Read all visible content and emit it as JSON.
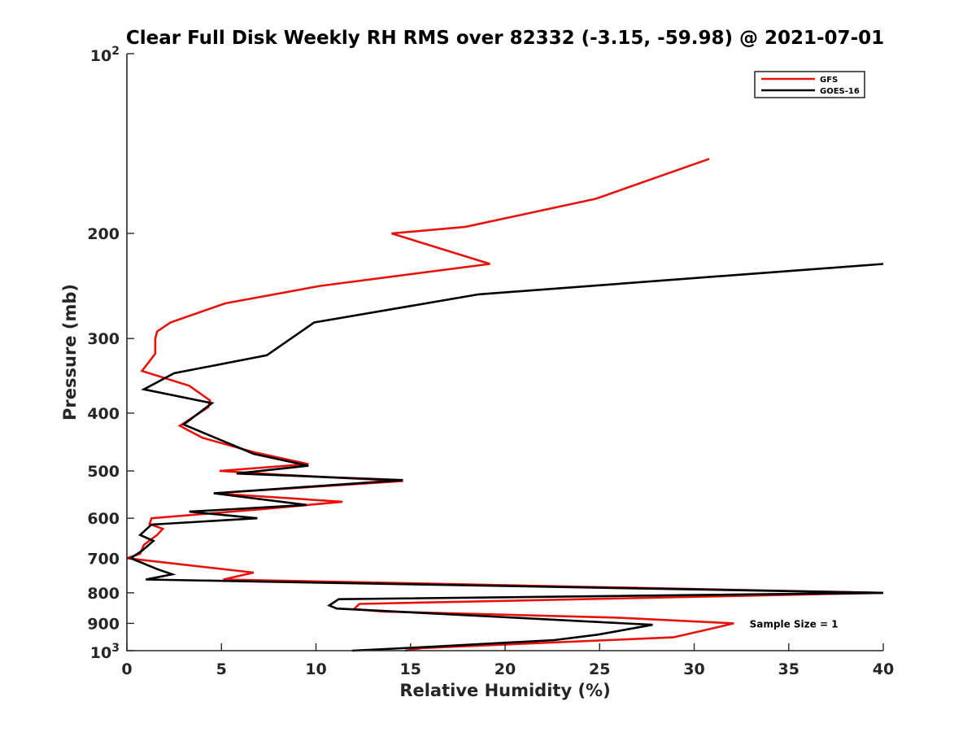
{
  "chart_data": {
    "type": "line",
    "title": "Clear Full Disk Weekly RH RMS over 82332 (-3.15, -59.98) @ 2021-07-01",
    "xlabel": "Relative Humidity (%)",
    "ylabel": "Pressure (mb)",
    "xlim": [
      0,
      40
    ],
    "ylim": [
      100,
      1000
    ],
    "y_scale": "log",
    "y_reversed": true,
    "grid": false,
    "legend_position": "top-right",
    "x_ticks": [
      0,
      5,
      10,
      15,
      20,
      25,
      30,
      35,
      40
    ],
    "x_tick_labels": [
      "0",
      "5",
      "10",
      "15",
      "20",
      "25",
      "30",
      "35",
      "40"
    ],
    "y_ticks": [
      200,
      300,
      400,
      500,
      600,
      700,
      800,
      900
    ],
    "y_tick_labels": [
      "200",
      "300",
      "400",
      "500",
      "600",
      "700",
      "800",
      "900"
    ],
    "y_tick_edge_labels": [
      {
        "value": 100,
        "base": "10",
        "exp": "2"
      },
      {
        "value": 1000,
        "base": "10",
        "exp": "3"
      }
    ],
    "series": [
      {
        "name": "GFS",
        "color": "#e8120c",
        "points": [
          [
            30.8,
            150
          ],
          [
            24.8,
            175
          ],
          [
            17.9,
            195
          ],
          [
            14.0,
            200
          ],
          [
            19.2,
            225
          ],
          [
            10.2,
            245
          ],
          [
            5.2,
            262
          ],
          [
            2.3,
            282
          ],
          [
            1.6,
            292
          ],
          [
            1.5,
            300
          ],
          [
            1.5,
            318
          ],
          [
            0.8,
            340
          ],
          [
            3.3,
            360
          ],
          [
            4.4,
            381
          ],
          [
            4.3,
            391
          ],
          [
            2.8,
            420
          ],
          [
            4.0,
            440
          ],
          [
            6.7,
            465
          ],
          [
            9.6,
            487
          ],
          [
            4.9,
            500
          ],
          [
            8.0,
            507
          ],
          [
            14.6,
            520
          ],
          [
            4.6,
            545
          ],
          [
            11.4,
            563
          ],
          [
            7.5,
            578
          ],
          [
            1.3,
            600
          ],
          [
            1.2,
            614
          ],
          [
            1.9,
            625
          ],
          [
            1.6,
            640
          ],
          [
            0.9,
            665
          ],
          [
            0.7,
            688
          ],
          [
            0.0,
            700
          ],
          [
            6.7,
            740
          ],
          [
            5.1,
            760
          ],
          [
            40.0,
            800
          ],
          [
            12.3,
            835
          ],
          [
            12.0,
            852
          ],
          [
            13.6,
            860
          ],
          [
            25.8,
            880
          ],
          [
            32.1,
            900
          ],
          [
            30.5,
            925
          ],
          [
            28.9,
            950
          ],
          [
            15.6,
            990
          ],
          [
            14.7,
            1000
          ]
        ]
      },
      {
        "name": "GOES-16",
        "color": "#000000",
        "points": [
          [
            40.0,
            225
          ],
          [
            18.6,
            253
          ],
          [
            9.9,
            282
          ],
          [
            7.4,
            320
          ],
          [
            2.5,
            343
          ],
          [
            0.9,
            365
          ],
          [
            4.5,
            385
          ],
          [
            3.0,
            418
          ],
          [
            6.7,
            468
          ],
          [
            9.6,
            490
          ],
          [
            5.8,
            505
          ],
          [
            14.6,
            518
          ],
          [
            4.6,
            545
          ],
          [
            9.5,
            570
          ],
          [
            3.3,
            585
          ],
          [
            6.9,
            600
          ],
          [
            1.3,
            615
          ],
          [
            0.7,
            640
          ],
          [
            1.4,
            655
          ],
          [
            0.8,
            680
          ],
          [
            0.2,
            700
          ],
          [
            1.6,
            730
          ],
          [
            2.4,
            745
          ],
          [
            1.0,
            760
          ],
          [
            40.0,
            800
          ],
          [
            11.2,
            820
          ],
          [
            10.7,
            840
          ],
          [
            11.1,
            850
          ],
          [
            27.8,
            905
          ],
          [
            24.9,
            940
          ],
          [
            22.6,
            960
          ],
          [
            16.1,
            985
          ],
          [
            11.9,
            1000
          ]
        ]
      }
    ],
    "annotations": [
      {
        "text": "Sample Size = 1",
        "x": 32.5,
        "y": 900
      }
    ]
  }
}
